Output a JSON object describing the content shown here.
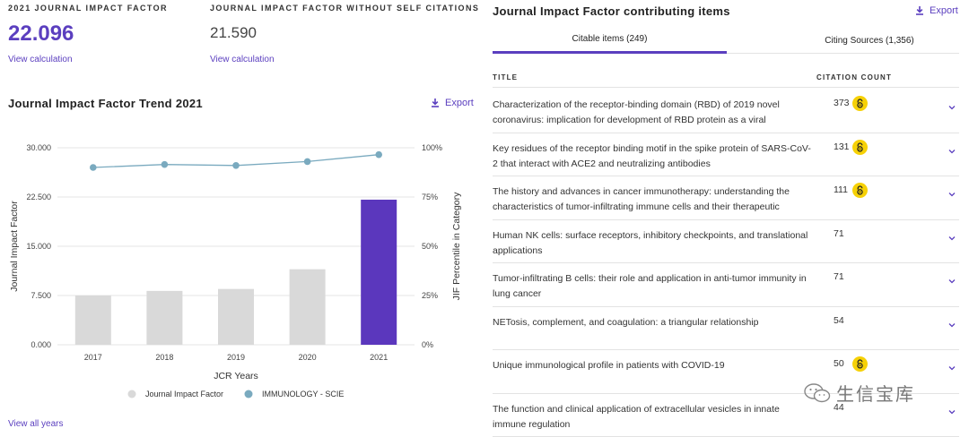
{
  "metrics": {
    "jif_label": "2021 JOURNAL IMPACT FACTOR",
    "jif_value": "22.096",
    "jif_link": "View calculation",
    "no_self_label": "JOURNAL IMPACT FACTOR WITHOUT SELF CITATIONS",
    "no_self_value": "21.590",
    "no_self_link": "View calculation"
  },
  "trend": {
    "title": "Journal Impact Factor Trend 2021",
    "export": "Export",
    "view_all": "View all years"
  },
  "chart_data": {
    "type": "bar",
    "categories": [
      "2017",
      "2018",
      "2019",
      "2020",
      "2021"
    ],
    "series": [
      {
        "name": "Journal Impact Factor",
        "axis": "left",
        "type": "bar",
        "values": [
          7.5,
          8.2,
          8.5,
          11.5,
          22.096
        ],
        "color": "#d9d9d9",
        "highlight_color": "#5b37bd"
      },
      {
        "name": "IMMUNOLOGY - SCIE",
        "axis": "right",
        "type": "line",
        "values": [
          90,
          91.5,
          91,
          93,
          96.5
        ],
        "color": "#7aaabf"
      }
    ],
    "ylabel": "Journal Impact Factor",
    "y2label": "JIF Percentile in Category",
    "xlabel": "JCR Years",
    "yticks": [
      "0.000",
      "7.500",
      "15.000",
      "22.500",
      "30.000"
    ],
    "y2ticks": [
      "0%",
      "25%",
      "50%",
      "75%",
      "100%"
    ],
    "ylim": [
      0,
      30
    ],
    "y2lim": [
      0,
      100
    ],
    "grid": true,
    "legend": "bottom"
  },
  "items": {
    "title": "Journal Impact Factor contributing items",
    "export": "Export",
    "tabs": [
      {
        "label": "Citable items (249)",
        "active": true
      },
      {
        "label": "Citing Sources (1,356)",
        "active": false
      }
    ],
    "col_title": "TITLE",
    "col_count": "CITATION COUNT",
    "rows": [
      {
        "title": "Characterization of the receptor-binding domain (RBD) of 2019 novel coronavirus: implication for development of RBD protein as a viral",
        "count": "373",
        "oa": true
      },
      {
        "title": "Key residues of the receptor binding motif in the spike protein of SARS-CoV-2 that interact with ACE2 and neutralizing antibodies",
        "count": "131",
        "oa": true
      },
      {
        "title": "The history and advances in cancer immunotherapy: understanding the characteristics of tumor-infiltrating immune cells and their therapeutic",
        "count": "111",
        "oa": true
      },
      {
        "title": "Human NK cells: surface receptors, inhibitory checkpoints, and translational applications",
        "count": "71",
        "oa": false
      },
      {
        "title": "Tumor-infiltrating B cells: their role and application in anti-tumor immunity in lung cancer",
        "count": "71",
        "oa": false
      },
      {
        "title": "NETosis, complement, and coagulation: a triangular relationship",
        "count": "54",
        "oa": false
      },
      {
        "title": "Unique immunological profile in patients with COVID-19",
        "count": "50",
        "oa": true
      },
      {
        "title": "The function and clinical application of extracellular vesicles in innate immune regulation",
        "count": "44",
        "oa": false
      }
    ]
  },
  "watermark": "生信宝库",
  "colors": {
    "accent": "#5b3fbf",
    "oa_badge": "#f6d106"
  }
}
